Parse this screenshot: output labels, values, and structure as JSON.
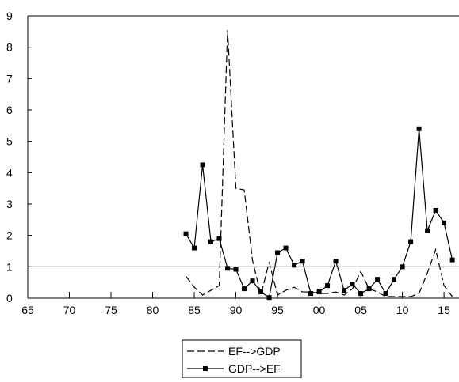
{
  "chart_data": {
    "type": "line",
    "x": [
      1984,
      1985,
      1986,
      1987,
      1988,
      1989,
      1990,
      1991,
      1992,
      1993,
      1994,
      1995,
      1996,
      1997,
      1998,
      1999,
      2000,
      2001,
      2002,
      2003,
      2004,
      2005,
      2006,
      2007,
      2008,
      2009,
      2010,
      2011,
      2012,
      2013,
      2014,
      2015,
      2016
    ],
    "series": [
      {
        "name": "EF-->GDP",
        "color": "#000000",
        "dash": true,
        "marker": false,
        "values": [
          0.7,
          0.35,
          0.1,
          0.25,
          0.4,
          8.55,
          3.5,
          3.45,
          1.2,
          0.1,
          1.15,
          0.1,
          0.25,
          0.35,
          0.2,
          0.2,
          0.15,
          0.15,
          0.2,
          0.1,
          0.3,
          0.85,
          0.3,
          0.2,
          0.05,
          0.05,
          0.05,
          0.05,
          0.15,
          0.8,
          1.55,
          0.4,
          0.05
        ]
      },
      {
        "name": "GDP-->EF",
        "color": "#000000",
        "dash": false,
        "marker": true,
        "values": [
          2.05,
          1.6,
          4.25,
          1.8,
          1.9,
          0.95,
          0.92,
          0.3,
          0.55,
          0.2,
          0.02,
          1.45,
          1.6,
          1.05,
          1.18,
          0.15,
          0.2,
          0.4,
          1.18,
          0.25,
          0.45,
          0.15,
          0.3,
          0.6,
          0.15,
          0.6,
          1.0,
          1.8,
          5.4,
          2.15,
          2.8,
          2.4,
          1.22
        ]
      }
    ],
    "xlim": [
      1965,
      2016.8
    ],
    "xticks": [
      {
        "value": 1965,
        "label": "65"
      },
      {
        "value": 1970,
        "label": "70"
      },
      {
        "value": 1975,
        "label": "75"
      },
      {
        "value": 1980,
        "label": "80"
      },
      {
        "value": 1985,
        "label": "85"
      },
      {
        "value": 1990,
        "label": "90"
      },
      {
        "value": 1995,
        "label": "95"
      },
      {
        "value": 2000,
        "label": "00"
      },
      {
        "value": 2005,
        "label": "05"
      },
      {
        "value": 2010,
        "label": "10"
      },
      {
        "value": 2015,
        "label": "15"
      }
    ],
    "ylim": [
      0,
      9
    ],
    "yticks": [
      0,
      1,
      2,
      3,
      4,
      5,
      6,
      7,
      8,
      9
    ],
    "reference_line": 1,
    "legend": "bottom"
  }
}
